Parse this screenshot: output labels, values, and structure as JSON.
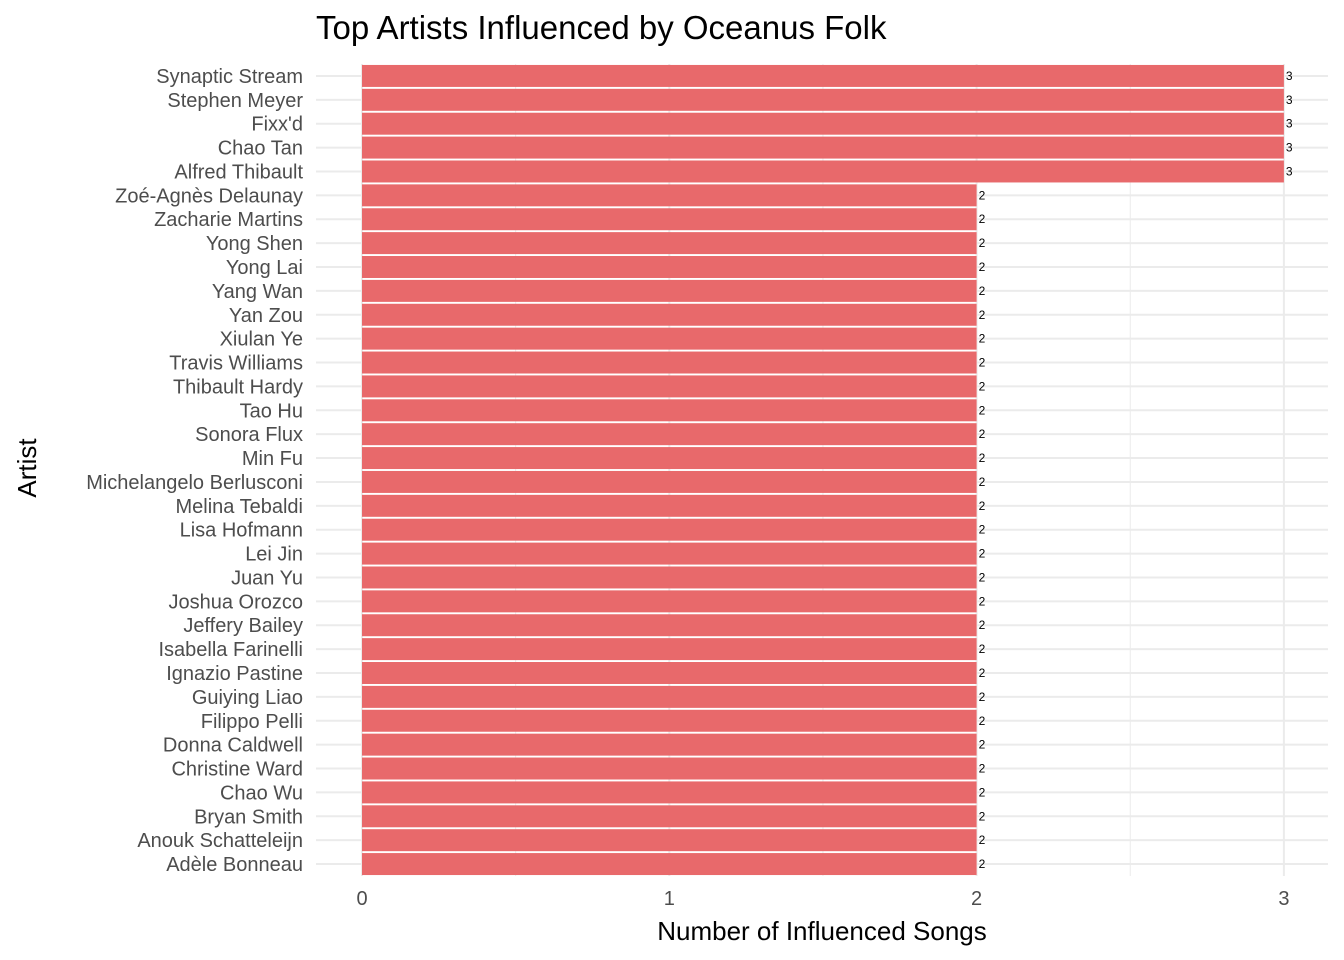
{
  "chart_data": {
    "type": "bar",
    "orientation": "horizontal",
    "title": "Top Artists Influenced by Oceanus Folk",
    "xlabel": "Number of Influenced Songs",
    "ylabel": "Artist",
    "xlim": [
      0,
      3
    ],
    "x_ticks": [
      "0",
      "1",
      "2",
      "3"
    ],
    "grid": true,
    "bar_color": "#E8696B",
    "categories": [
      "Synaptic Stream",
      "Stephen Meyer",
      "Fixx'd",
      "Chao Tan",
      "Alfred Thibault",
      "Zoé-Agnès Delaunay",
      "Zacharie Martins",
      "Yong Shen",
      "Yong Lai",
      "Yang Wan",
      "Yan Zou",
      "Xiulan Ye",
      "Travis Williams",
      "Thibault Hardy",
      "Tao Hu",
      "Sonora Flux",
      "Min Fu",
      "Michelangelo Berlusconi",
      "Melina Tebaldi",
      "Lisa Hofmann",
      "Lei Jin",
      "Juan Yu",
      "Joshua Orozco",
      "Jeffery Bailey",
      "Isabella Farinelli",
      "Ignazio Pastine",
      "Guiying Liao",
      "Filippo Pelli",
      "Donna Caldwell",
      "Christine Ward",
      "Chao Wu",
      "Bryan Smith",
      "Anouk Schatteleijn",
      "Adèle Bonneau"
    ],
    "values": [
      3,
      3,
      3,
      3,
      3,
      2,
      2,
      2,
      2,
      2,
      2,
      2,
      2,
      2,
      2,
      2,
      2,
      2,
      2,
      2,
      2,
      2,
      2,
      2,
      2,
      2,
      2,
      2,
      2,
      2,
      2,
      2,
      2,
      2
    ],
    "data_labels": [
      "3",
      "3",
      "3",
      "3",
      "3",
      "2",
      "2",
      "2",
      "2",
      "2",
      "2",
      "2",
      "2",
      "2",
      "2",
      "2",
      "2",
      "2",
      "2",
      "2",
      "2",
      "2",
      "2",
      "2",
      "2",
      "2",
      "2",
      "2",
      "2",
      "2",
      "2",
      "2",
      "2",
      "2"
    ]
  }
}
